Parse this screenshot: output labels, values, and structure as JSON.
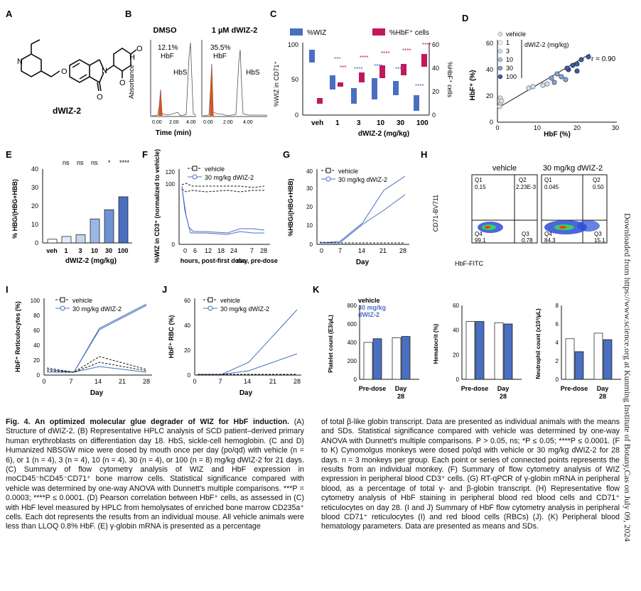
{
  "panels": {
    "A": {
      "label": "A",
      "compound": "dWIZ-2"
    },
    "B": {
      "label": "B",
      "col1": "DMSO",
      "col2": "1 µM dWIZ-2",
      "pct1": "12.1%",
      "pct2": "35.5%",
      "hbf": "HbF",
      "hbs": "HbS",
      "ylabel": "Absorbance",
      "xlabel": "Time (min)",
      "ticks": [
        "0.00",
        "2.00",
        "4.00"
      ]
    },
    "C": {
      "label": "C",
      "legend_wiz": "%WIZ",
      "legend_hbf": "%HbF⁺ cells",
      "ylabel_left": "%WIZ in CD71⁺",
      "ylabel_right": "%HbF⁺ cells",
      "xlabel": "dWIZ-2 (mg/kg)",
      "categories": [
        "veh",
        "1",
        "3",
        "10",
        "30",
        "100"
      ],
      "yticks_left": [
        "0",
        "50",
        "100"
      ],
      "yticks_right": [
        "0",
        "20",
        "40",
        "60"
      ],
      "sig": "****",
      "sig3": "***"
    },
    "D": {
      "label": "D",
      "legend_title": "dWIZ-2 (mg/kg)",
      "legend": [
        "vehicle",
        "1",
        "3",
        "10",
        "30",
        "100"
      ],
      "r": "r = 0.90",
      "xlabel": "HbF (%)",
      "ylabel": "HbF⁺ (%)",
      "xticks": [
        "0",
        "10",
        "20",
        "30"
      ],
      "yticks": [
        "0",
        "20",
        "40",
        "60"
      ]
    },
    "E": {
      "label": "E",
      "ylabel": "% HBG/(HBG+HBB)",
      "xlabel": "dWIZ-2 (mg/kg)",
      "categories": [
        "veh",
        "1",
        "3",
        "10",
        "30",
        "100"
      ],
      "sig": [
        "ns",
        "ns",
        "ns",
        "*",
        "****"
      ],
      "yticks": [
        "0",
        "10",
        "20",
        "30",
        "40"
      ]
    },
    "F": {
      "label": "F",
      "legend": [
        "vehicle",
        "30 mg/kg dWIZ-2"
      ],
      "ylabel": "%WIZ in CD3⁺ (normalized to vehicle)",
      "xticks": [
        "0",
        "6",
        "12",
        "18",
        "24",
        "7",
        "28"
      ],
      "xlabel1": "hours, post-first dose",
      "xlabel2": "day, pre-dose",
      "yticks": [
        "0",
        "20",
        "40",
        "60",
        "80",
        "100",
        "120"
      ]
    },
    "G": {
      "label": "G",
      "legend": [
        "vehicle",
        "30 mg/kg dWIZ-2"
      ],
      "ylabel": "%HBG/(HBG+HBB)",
      "xlabel": "Day",
      "xticks": [
        "0",
        "7",
        "14",
        "21",
        "28"
      ],
      "yticks": [
        "0",
        "10",
        "20",
        "30",
        "40"
      ]
    },
    "H": {
      "label": "H",
      "col1": "vehicle",
      "col2": "30 mg/kg dWIZ-2",
      "ylabel": "CD71-BV711",
      "xlabel": "HbF-FITC",
      "veh": {
        "q1": "Q1",
        "q1v": "0.15",
        "q2": "Q2",
        "q2v": "2.23E-3",
        "q3": "Q3",
        "q3v": "0.78",
        "q4": "Q4",
        "q4v": "99.1"
      },
      "drug": {
        "q1": "Q1",
        "q1v": "0.045",
        "q2": "Q2",
        "q2v": "0.50",
        "q3": "Q3",
        "q3v": "15.1",
        "q4": "Q4",
        "q4v": "84.3"
      }
    },
    "I": {
      "label": "I",
      "legend": [
        "vehicle",
        "30 mg/kg dWIZ-2"
      ],
      "ylabel": "HbF⁺ Reticulocytes (%)",
      "xlabel": "Day",
      "xticks": [
        "0",
        "7",
        "14",
        "21",
        "28"
      ],
      "yticks": [
        "0",
        "20",
        "40",
        "60",
        "80",
        "100"
      ]
    },
    "J": {
      "label": "J",
      "legend": [
        "vehicle",
        "30 mg/kg dWIZ-2"
      ],
      "ylabel": "HbF⁺ RBC (%)",
      "xlabel": "Day",
      "xticks": [
        "0",
        "7",
        "14",
        "21",
        "28"
      ],
      "yticks": [
        "0",
        "20",
        "40",
        "60"
      ]
    },
    "K": {
      "label": "K",
      "legend": [
        "vehicle",
        "30 mg/kg",
        "dWIZ-2"
      ],
      "groups": [
        "Pre-",
        "dose",
        "Day",
        "28"
      ],
      "ylabels": [
        "Platelet count (E3/µL)",
        "Hematocrit (%)",
        "Neutrophil count (x10³/µL)"
      ],
      "yticks1": [
        "0",
        "200",
        "400",
        "600",
        "800"
      ],
      "yticks2": [
        "0",
        "20",
        "40",
        "60"
      ],
      "yticks3": [
        "0",
        "2",
        "4",
        "6",
        "8"
      ]
    }
  },
  "chart_data": [
    {
      "panel": "K-platelets",
      "type": "bar",
      "categories": [
        "Pre-dose",
        "Day 28"
      ],
      "series": [
        {
          "name": "vehicle",
          "values": [
            400,
            450
          ]
        },
        {
          "name": "30 mg/kg dWIZ-2",
          "values": [
            440,
            465
          ]
        }
      ],
      "ylim": [
        0,
        800
      ]
    },
    {
      "panel": "K-hematocrit",
      "type": "bar",
      "categories": [
        "Pre-dose",
        "Day 28"
      ],
      "series": [
        {
          "name": "vehicle",
          "values": [
            47,
            46
          ]
        },
        {
          "name": "30 mg/kg dWIZ-2",
          "values": [
            47,
            45
          ]
        }
      ],
      "ylim": [
        0,
        60
      ]
    },
    {
      "panel": "K-neutrophil",
      "type": "bar",
      "categories": [
        "Pre-dose",
        "Day 28"
      ],
      "series": [
        {
          "name": "vehicle",
          "values": [
            4.4,
            5.0
          ]
        },
        {
          "name": "30 mg/kg dWIZ-2",
          "values": [
            3.0,
            4.3
          ]
        }
      ],
      "ylim": [
        0,
        8
      ]
    },
    {
      "panel": "E",
      "type": "bar",
      "categories": [
        "veh",
        "1",
        "3",
        "10",
        "30",
        "100"
      ],
      "values": [
        2,
        3.5,
        4.5,
        13,
        18,
        25
      ],
      "ylim": [
        0,
        40
      ]
    }
  ],
  "caption": {
    "title": "Fig. 4. An optimized molecular glue degrader of WIZ for HbF induction.",
    "left": "(A) Structure of dWIZ-2. (B) Representative HPLC analysis of SCD patient–derived primary human erythroblasts on differentiation day 18. HbS, sickle-cell hemoglobin. (C and D) Humanized NBSGW mice were dosed by mouth once per day (po/qd) with vehicle (n = 6), or 1 (n = 4), 3 (n = 4), 10 (n = 4), 30 (n = 4), or 100 (n = 8) mg/kg dWIZ-2 for 21 days. (C) Summary of flow cytometry analysis of WIZ and HbF expression in moCD45⁻hCD45⁻CD71⁺ bone marrow cells. Statistical significance compared with vehicle was determined by one-way ANOVA with Dunnett's multiple comparisons. ***P = 0.0003; ****P ≤ 0.0001. (D) Pearson correlation between HbF⁺ cells, as assessed in (C) with HbF level measured by HPLC from hemolysates of enriched bone marrow CD235a⁺ cells. Each dot represents the results from an individual mouse. All vehicle animals were less than LLOQ 0.8% HbF. (E) γ-globin mRNA is presented as a percentage",
    "right": "of total β-like globin transcript. Data are presented as individual animals with the means and SDs. Statistical significance compared with vehicle was determined by one-way ANOVA with Dunnett's multiple comparisons. P > 0.05, ns; *P ≤ 0.05; ****P ≤ 0.0001. (F to K) Cynomolgus monkeys were dosed po/qd with vehicle or 30 mg/kg dWIZ-2 for 28 days. n = 3 monkeys per group. Each point or series of connected points represents the results from an individual monkey. (F) Summary of flow cytometry analysis of WIZ expression in peripheral blood CD3⁺ cells. (G) RT-qPCR of γ-globin mRNA in peripheral blood, as a percentage of total γ- and β-globin transcript. (H) Representative flow cytometry analysis of HbF staining in peripheral blood red blood cells and CD71⁺ reticulocytes on day 28. (I and J) Summary of HbF flow cytometry analysis in peripheral blood CD71⁺ reticulocytes (I) and red blood cells (RBCs) (J). (K) Peripheral blood hematology parameters. Data are presented as means and SDs."
  },
  "side_note": "Downloaded from https://www.science.org at Kunming Institute of Botany,Cas on July 09, 2024",
  "colors": {
    "blue": "#4a6fc0",
    "magenta": "#c2185b",
    "orange": "#d9541a"
  }
}
